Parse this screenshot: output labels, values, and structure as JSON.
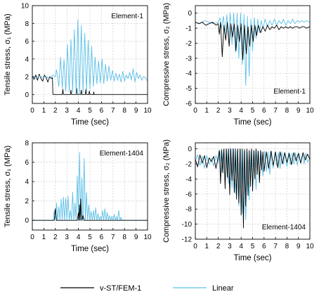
{
  "legend": {
    "entries": [
      {
        "label": "v-ST/FEM-1",
        "color": "#000000"
      },
      {
        "label": "Linear",
        "color": "#5bc0e8"
      }
    ]
  },
  "chart_data": [
    {
      "id": "p1",
      "type": "line",
      "xlabel": "Time (sec)",
      "ylabel": "Tensile stress, σ₁ (MPa)",
      "annotation": "Element-1",
      "annotation_pos": "top-right",
      "xlim": [
        0,
        10
      ],
      "ylim": [
        -1,
        10
      ],
      "xticks": [
        0,
        1,
        2,
        3,
        4,
        5,
        6,
        7,
        8,
        9,
        10
      ],
      "yticks": [
        0,
        2,
        4,
        6,
        8,
        10
      ],
      "grid": "dashed",
      "series": [
        {
          "name": "v-ST/FEM-1",
          "color": "#000000",
          "x": [
            0.0,
            0.15,
            0.3,
            0.45,
            0.6,
            0.75,
            0.9,
            1.05,
            1.2,
            1.35,
            1.5,
            1.65,
            1.75,
            1.78,
            1.8,
            2.0,
            2.6,
            2.65,
            2.7,
            3.0,
            3.3,
            3.35,
            3.4,
            3.8,
            3.85,
            3.9,
            4.2,
            4.25,
            4.3,
            4.6,
            4.65,
            4.7,
            4.9,
            4.95,
            5.0,
            5.3,
            5.33,
            5.36,
            10.0
          ],
          "y": [
            2.1,
            1.7,
            2.2,
            1.6,
            2.3,
            1.8,
            1.5,
            2.2,
            1.9,
            1.4,
            2.0,
            1.8,
            1.9,
            0.2,
            0.0,
            0.0,
            0.0,
            0.6,
            0.0,
            0.0,
            0.0,
            0.5,
            0.0,
            0.0,
            0.7,
            0.0,
            0.0,
            0.5,
            0.0,
            0.0,
            0.6,
            0.0,
            0.0,
            0.4,
            0.0,
            0.0,
            0.3,
            0.0,
            0.0
          ]
        },
        {
          "name": "Linear",
          "color": "#5bc0e8",
          "x": [
            0.0,
            0.3,
            0.6,
            0.9,
            1.2,
            1.5,
            1.8,
            2.0,
            2.1,
            2.3,
            2.45,
            2.6,
            2.75,
            2.9,
            3.05,
            3.2,
            3.35,
            3.5,
            3.65,
            3.8,
            3.95,
            4.1,
            4.25,
            4.4,
            4.55,
            4.7,
            4.85,
            5.0,
            5.15,
            5.3,
            5.45,
            5.6,
            5.75,
            5.9,
            6.05,
            6.2,
            6.35,
            6.5,
            6.65,
            6.8,
            6.95,
            7.1,
            7.25,
            7.4,
            7.55,
            7.7,
            7.85,
            8.0,
            8.15,
            8.3,
            8.45,
            8.6,
            8.75,
            8.9,
            9.05,
            9.2,
            9.35,
            9.5,
            9.65,
            9.8,
            10.0
          ],
          "y": [
            2.0,
            1.8,
            2.1,
            1.9,
            2.0,
            1.8,
            2.2,
            2.0,
            2.8,
            0.9,
            4.2,
            0.7,
            3.9,
            0.4,
            5.6,
            0.3,
            6.2,
            0.2,
            7.3,
            0.1,
            8.4,
            0.0,
            7.8,
            0.2,
            6.9,
            0.4,
            6.1,
            0.6,
            5.4,
            0.9,
            4.2,
            1.2,
            3.8,
            1.3,
            4.0,
            1.2,
            3.4,
            1.5,
            3.2,
            1.6,
            2.7,
            1.5,
            2.4,
            1.6,
            2.3,
            1.4,
            2.6,
            1.5,
            2.2,
            1.8,
            2.5,
            1.6,
            2.9,
            1.4,
            2.5,
            1.8,
            2.2,
            1.6,
            2.0,
            1.9,
            1.5
          ]
        }
      ]
    },
    {
      "id": "p2",
      "type": "line",
      "xlabel": "Time (sec)",
      "ylabel": "Compressive stress, σ₂ (MPa)",
      "annotation": "Element-1",
      "annotation_pos": "bottom-right",
      "xlim": [
        0,
        10
      ],
      "ylim": [
        -6,
        0.5
      ],
      "xticks": [
        0,
        1,
        2,
        3,
        4,
        5,
        6,
        7,
        8,
        9,
        10
      ],
      "yticks": [
        0,
        -1,
        -2,
        -3,
        -4,
        -5,
        -6
      ],
      "grid": "dashed",
      "series": [
        {
          "name": "Linear",
          "color": "#5bc0e8",
          "x": [
            0.0,
            0.4,
            0.8,
            1.2,
            1.6,
            2.0,
            2.15,
            2.3,
            2.45,
            2.6,
            2.75,
            2.9,
            3.05,
            3.2,
            3.35,
            3.5,
            3.65,
            3.8,
            3.95,
            4.1,
            4.25,
            4.4,
            4.55,
            4.7,
            4.85,
            5.0,
            5.15,
            5.3,
            5.45,
            5.6,
            5.75,
            5.9,
            6.1,
            6.3,
            6.5,
            6.7,
            6.9,
            7.1,
            7.3,
            7.5,
            7.7,
            7.9,
            8.1,
            8.3,
            8.5,
            8.7,
            8.9,
            9.1,
            9.3,
            9.5,
            9.7,
            10.0
          ],
          "y": [
            -0.6,
            -0.7,
            -0.5,
            -0.6,
            -0.7,
            -0.6,
            -0.3,
            -1.0,
            -0.2,
            -1.4,
            -0.1,
            -1.7,
            0.0,
            -2.1,
            0.0,
            -2.6,
            0.0,
            -3.0,
            0.0,
            -3.4,
            -0.1,
            -4.8,
            -0.2,
            -4.2,
            -0.4,
            -2.5,
            -0.3,
            -1.7,
            -0.4,
            -1.3,
            -0.5,
            -1.0,
            -0.4,
            -0.9,
            -0.5,
            -0.8,
            -0.4,
            -0.8,
            -0.5,
            -0.7,
            -0.4,
            -0.8,
            -0.5,
            -0.7,
            -0.4,
            -0.7,
            -0.5,
            -0.6,
            -0.5,
            -0.6,
            -0.5,
            -0.6
          ]
        },
        {
          "name": "v-ST/FEM-1",
          "color": "#000000",
          "x": [
            0.0,
            0.3,
            0.6,
            0.9,
            1.2,
            1.5,
            1.8,
            2.0,
            2.1,
            2.2,
            2.35,
            2.5,
            2.65,
            2.8,
            2.95,
            3.1,
            3.25,
            3.4,
            3.55,
            3.7,
            3.85,
            4.0,
            4.15,
            4.3,
            4.45,
            4.6,
            4.75,
            4.9,
            5.05,
            5.2,
            5.35,
            5.5,
            5.7,
            5.9,
            6.1,
            6.3,
            6.5,
            6.7,
            6.9,
            7.1,
            7.3,
            7.5,
            7.7,
            7.9,
            8.1,
            8.3,
            8.5,
            8.7,
            8.9,
            9.1,
            9.3,
            9.5,
            9.7,
            10.0
          ],
          "y": [
            -0.6,
            -0.7,
            -0.6,
            -0.8,
            -0.7,
            -0.6,
            -0.8,
            -0.7,
            -1.4,
            -0.6,
            -2.9,
            -0.8,
            -1.8,
            -0.6,
            -2.2,
            -0.7,
            -1.6,
            -0.7,
            -2.5,
            -0.8,
            -1.9,
            -0.7,
            -3.1,
            -0.8,
            -2.7,
            -0.9,
            -2.2,
            -0.8,
            -1.9,
            -0.8,
            -1.5,
            -0.8,
            -1.3,
            -0.9,
            -1.2,
            -0.8,
            -1.1,
            -0.9,
            -1.0,
            -0.8,
            -1.1,
            -0.9,
            -1.0,
            -0.9,
            -1.0,
            -0.9,
            -1.0,
            -0.9,
            -0.9,
            -1.0,
            -0.9,
            -0.9,
            -1.0,
            -0.9
          ]
        }
      ]
    },
    {
      "id": "p3",
      "type": "line",
      "xlabel": "Time (sec)",
      "ylabel": "Tensile stress, σ₁ (MPa)",
      "annotation": "Element-1404",
      "annotation_pos": "top-right",
      "xlim": [
        0,
        10
      ],
      "ylim": [
        -1,
        8
      ],
      "xticks": [
        0,
        1,
        2,
        3,
        4,
        5,
        6,
        7,
        8,
        9,
        10
      ],
      "yticks": [
        0,
        2,
        4,
        6,
        8
      ],
      "grid": "dashed",
      "series": [
        {
          "name": "Linear",
          "color": "#5bc0e8",
          "x": [
            0.0,
            1.8,
            1.9,
            2.0,
            2.1,
            2.2,
            2.3,
            2.4,
            2.5,
            2.6,
            2.7,
            2.8,
            2.9,
            3.0,
            3.1,
            3.2,
            3.3,
            3.4,
            3.5,
            3.6,
            3.7,
            3.8,
            3.9,
            4.0,
            4.1,
            4.2,
            4.3,
            4.4,
            4.5,
            4.6,
            4.7,
            4.8,
            4.9,
            5.0,
            5.1,
            5.2,
            5.3,
            5.4,
            5.5,
            5.6,
            5.7,
            5.8,
            5.9,
            6.0,
            6.1,
            6.2,
            6.3,
            6.4,
            6.5,
            6.6,
            6.7,
            6.8,
            6.9,
            7.0,
            7.1,
            7.2,
            7.3,
            7.4,
            7.5,
            7.6,
            7.7,
            7.8,
            8.0,
            10.0
          ],
          "y": [
            0.0,
            0.0,
            1.0,
            0.0,
            1.8,
            0.0,
            1.4,
            0.0,
            2.2,
            0.0,
            2.4,
            0.0,
            2.3,
            0.0,
            2.5,
            0.0,
            1.0,
            0.0,
            2.9,
            0.0,
            1.8,
            0.0,
            4.6,
            0.0,
            7.0,
            0.0,
            4.4,
            0.0,
            6.4,
            0.0,
            2.9,
            0.0,
            1.6,
            0.0,
            0.9,
            0.0,
            1.0,
            0.0,
            1.3,
            0.0,
            0.7,
            0.0,
            0.4,
            0.0,
            1.0,
            0.0,
            1.2,
            0.0,
            0.8,
            0.0,
            0.5,
            0.0,
            0.4,
            0.0,
            0.6,
            0.0,
            0.4,
            0.0,
            1.0,
            0.0,
            0.3,
            0.0,
            0.0,
            0.0
          ]
        },
        {
          "name": "v-ST/FEM-1",
          "color": "#000000",
          "x": [
            0.0,
            1.9,
            2.0,
            2.1,
            3.9,
            4.0,
            4.05,
            4.1,
            4.15,
            4.2,
            4.3,
            4.4,
            4.5,
            10.0
          ],
          "y": [
            0.0,
            0.0,
            1.2,
            0.0,
            0.0,
            0.8,
            0.0,
            1.6,
            0.0,
            2.2,
            0.0,
            0.5,
            0.0,
            0.0
          ]
        }
      ]
    },
    {
      "id": "p4",
      "type": "line",
      "xlabel": "Time (sec)",
      "ylabel": "Compressive stress, σ₂ (MPa)",
      "annotation": "Element-1404",
      "annotation_pos": "bottom-right",
      "xlim": [
        0,
        10
      ],
      "ylim": [
        -12,
        0.8
      ],
      "xticks": [
        0,
        1,
        2,
        3,
        4,
        5,
        6,
        7,
        8,
        9,
        10
      ],
      "yticks": [
        0,
        -2,
        -4,
        -6,
        -8,
        -10,
        -12
      ],
      "grid": "dashed",
      "series": [
        {
          "name": "Linear",
          "color": "#5bc0e8",
          "x": [
            0.0,
            0.2,
            0.4,
            0.6,
            0.8,
            1.0,
            1.2,
            1.4,
            1.6,
            1.8,
            2.0,
            2.15,
            2.3,
            2.45,
            2.6,
            2.75,
            2.9,
            3.05,
            3.2,
            3.35,
            3.5,
            3.65,
            3.8,
            3.95,
            4.1,
            4.25,
            4.4,
            4.55,
            4.7,
            4.85,
            5.0,
            5.15,
            5.3,
            5.45,
            5.6,
            5.75,
            5.9,
            6.05,
            6.2,
            6.35,
            6.5,
            6.65,
            6.8,
            6.95,
            7.1,
            7.25,
            7.4,
            7.55,
            7.7,
            7.85,
            8.0,
            8.15,
            8.3,
            8.45,
            8.6,
            8.75,
            8.9,
            9.05,
            9.2,
            9.35,
            9.5,
            9.65,
            9.8,
            10.0
          ],
          "y": [
            -1.6,
            -0.8,
            -2.2,
            -1.0,
            -2.6,
            -0.9,
            -2.0,
            -1.2,
            -2.3,
            -0.9,
            -1.8,
            -0.3,
            -3.1,
            -0.2,
            -4.0,
            -0.1,
            -4.6,
            0.0,
            -5.2,
            0.0,
            -6.0,
            -0.2,
            -7.6,
            -0.1,
            -8.6,
            -0.3,
            -9.4,
            -0.4,
            -6.8,
            -0.3,
            -5.2,
            -0.3,
            -5.4,
            -0.2,
            -4.0,
            -0.4,
            -3.6,
            -0.3,
            -3.0,
            -0.4,
            -3.4,
            -0.3,
            -2.6,
            -0.5,
            -2.2,
            -0.5,
            -2.6,
            -0.4,
            -2.0,
            -0.6,
            -2.4,
            -0.5,
            -2.1,
            -0.6,
            -2.0,
            -0.5,
            -2.2,
            -0.6,
            -1.9,
            -0.7,
            -2.0,
            -0.6,
            -1.8,
            -1.2
          ]
        },
        {
          "name": "v-ST/FEM-1",
          "color": "#000000",
          "x": [
            0.0,
            0.2,
            0.4,
            0.6,
            0.8,
            1.0,
            1.2,
            1.4,
            1.6,
            1.8,
            2.0,
            2.1,
            2.2,
            2.3,
            2.4,
            2.5,
            2.6,
            2.7,
            2.8,
            2.9,
            3.0,
            3.1,
            3.2,
            3.3,
            3.4,
            3.5,
            3.6,
            3.7,
            3.8,
            3.9,
            4.0,
            4.1,
            4.2,
            4.3,
            4.4,
            4.5,
            4.6,
            4.7,
            4.8,
            4.9,
            5.0,
            5.1,
            5.2,
            5.3,
            5.4,
            5.5,
            5.6,
            5.7,
            5.8,
            5.9,
            6.0,
            6.2,
            6.4,
            6.6,
            6.8,
            7.0,
            7.2,
            7.4,
            7.6,
            7.8,
            8.0,
            8.2,
            8.4,
            8.6,
            8.8,
            9.0,
            9.2,
            9.4,
            9.6,
            9.8,
            10.0
          ],
          "y": [
            -1.4,
            -2.4,
            -0.8,
            -1.9,
            -0.9,
            -2.5,
            -1.2,
            -1.7,
            -1.0,
            -2.6,
            -1.1,
            -0.2,
            -4.6,
            -0.1,
            -3.2,
            0.0,
            -5.3,
            0.0,
            -3.8,
            0.0,
            -6.1,
            0.0,
            -4.2,
            0.0,
            -5.8,
            0.0,
            -6.7,
            0.0,
            -7.2,
            0.0,
            -8.8,
            0.0,
            -10.5,
            -0.1,
            -7.6,
            0.0,
            -6.2,
            -0.2,
            -5.0,
            0.0,
            -5.6,
            -0.2,
            -4.0,
            0.0,
            -3.4,
            -0.3,
            -4.5,
            -0.2,
            -2.8,
            -0.4,
            -3.0,
            -0.4,
            -2.6,
            -0.3,
            -2.2,
            -0.4,
            -2.5,
            -0.4,
            -2.0,
            -0.5,
            -1.8,
            -0.6,
            -2.1,
            -0.5,
            -1.6,
            -0.6,
            -1.9,
            -0.5,
            -1.5,
            -0.7,
            -1.4
          ]
        }
      ]
    }
  ]
}
